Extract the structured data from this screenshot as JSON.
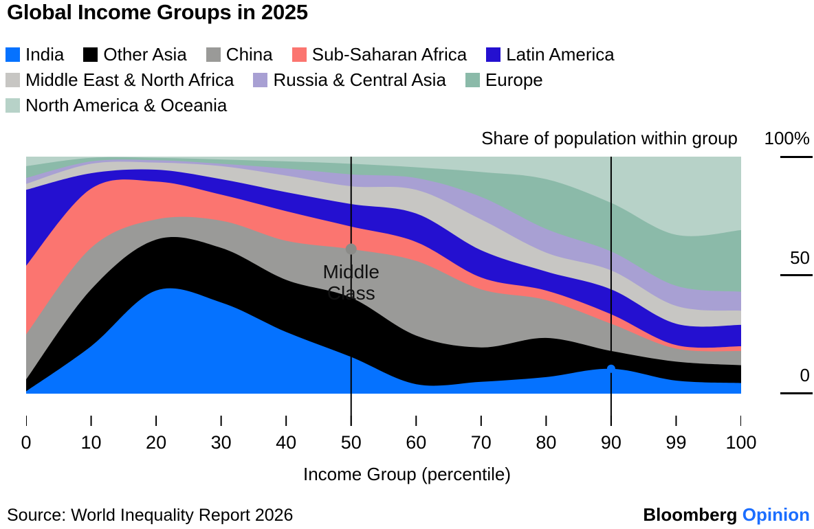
{
  "title": "Global Income Groups in 2025",
  "legend": {
    "items": [
      {
        "label": "India",
        "color": "#0572ff"
      },
      {
        "label": "Other Asia",
        "color": "#000000"
      },
      {
        "label": "China",
        "color": "#9a9a98"
      },
      {
        "label": "Sub-Saharan Africa",
        "color": "#fb7570"
      },
      {
        "label": "Latin America",
        "color": "#2410d0"
      },
      {
        "label": "Middle East & North Africa",
        "color": "#c7c6c3"
      },
      {
        "label": "Russia & Central Asia",
        "color": "#a8a0d3"
      },
      {
        "label": "Europe",
        "color": "#8bbaa9"
      },
      {
        "label": "North America & Oceania",
        "color": "#b7d2c8"
      }
    ]
  },
  "y_axis": {
    "title": "Share of population within group",
    "ticks": [
      {
        "label": "100%",
        "value": 100
      },
      {
        "label": "50",
        "value": 50
      },
      {
        "label": "0",
        "value": 0
      }
    ]
  },
  "x_axis": {
    "title": "Income Group (percentile)",
    "tick_labels": [
      "0",
      "10",
      "20",
      "30",
      "40",
      "50",
      "60",
      "70",
      "80",
      "90",
      "99",
      "100"
    ]
  },
  "annotation": {
    "line1": "Middle",
    "line2": "Class",
    "at_percentile": "50"
  },
  "source": "Source: World Inequality Report 2026",
  "branding": {
    "name": "Bloomberg",
    "unit": "Opinion",
    "unit_color": "#1b6eff"
  },
  "chart_data": {
    "type": "area",
    "stacked": true,
    "unit": "percent",
    "title": "Global Income Groups in 2025",
    "ylabel": "Share of population within group",
    "xlabel": "Income Group (percentile)",
    "ylim": [
      0,
      100
    ],
    "categories": [
      0,
      10,
      20,
      30,
      40,
      50,
      60,
      70,
      80,
      90,
      99,
      100
    ],
    "series": [
      {
        "name": "India",
        "color": "#0572ff",
        "values": [
          1,
          20,
          43.5,
          38.5,
          26,
          15.5,
          4,
          5,
          7,
          10.5,
          5.5,
          4.5
        ]
      },
      {
        "name": "Other Asia",
        "color": "#000000",
        "values": [
          5,
          24,
          21.5,
          23,
          22,
          25,
          20.5,
          14.5,
          16.5,
          7.5,
          8,
          7.5
        ]
      },
      {
        "name": "China",
        "color": "#9a9a98",
        "values": [
          19,
          17.5,
          8.5,
          11.5,
          16.5,
          20.5,
          31.5,
          24.5,
          16,
          11.5,
          5.5,
          6
        ]
      },
      {
        "name": "Sub-Saharan Africa",
        "color": "#fb7570",
        "values": [
          29,
          25,
          16,
          11,
          12.5,
          9.5,
          8,
          5,
          4,
          4,
          1.5,
          2
        ]
      },
      {
        "name": "Latin America",
        "color": "#2410d0",
        "values": [
          32,
          6.5,
          5,
          6.5,
          8,
          9.5,
          12,
          11.5,
          8,
          10.5,
          9,
          9
        ]
      },
      {
        "name": "Middle East & North Africa",
        "color": "#c7c6c3",
        "values": [
          2.5,
          4,
          3,
          5.5,
          7,
          7.5,
          10,
          13,
          8,
          8,
          7.5,
          6
        ]
      },
      {
        "name": "Russia & Central Asia",
        "color": "#a8a0d3",
        "values": [
          2.5,
          1,
          1,
          1,
          3,
          5,
          5,
          9.5,
          10,
          8,
          8.5,
          8
        ]
      },
      {
        "name": "Europe",
        "color": "#8bbaa9",
        "values": [
          5,
          1.5,
          1,
          1.8,
          3,
          4.5,
          4.5,
          10.5,
          21,
          20.5,
          21.5,
          26
        ]
      },
      {
        "name": "North America & Oceania",
        "color": "#b7d2c8",
        "values": [
          4,
          0.5,
          0.5,
          1.2,
          2,
          3,
          4.5,
          6.5,
          9.5,
          19.5,
          33,
          31
        ]
      }
    ],
    "reference_lines_x": [
      50,
      90
    ],
    "markers": [
      {
        "x": 50,
        "stack_y": 61,
        "color": "#8b8b88",
        "on": "top of China layer"
      },
      {
        "x": 90,
        "stack_y": 10.5,
        "color": "#0572ff",
        "on": "top of India layer"
      }
    ]
  }
}
